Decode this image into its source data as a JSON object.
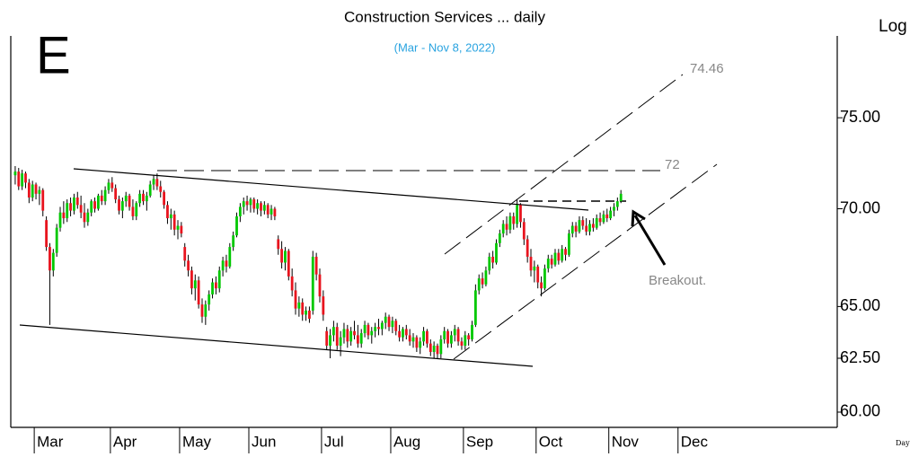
{
  "chart_data": {
    "type": "candlestick",
    "title": "Construction Services ... daily",
    "subtitle": "(Mar - Nov 8, 2022)",
    "panel_letter": "E",
    "scale_label": "Log",
    "footer_label": "Day",
    "annotations": [
      "74.46",
      "72",
      "Breakout."
    ],
    "log_scale": true,
    "up_color": "#00c800",
    "down_color": "#e8141e",
    "ylim": [
      59.35,
      79.8
    ],
    "yticks": [
      {
        "value": 60,
        "label": "60.00"
      },
      {
        "value": 62.5,
        "label": "62.50"
      },
      {
        "value": 65,
        "label": "65.00"
      },
      {
        "value": 70,
        "label": "70.00"
      },
      {
        "value": 75,
        "label": "75.00"
      }
    ],
    "categories": [
      null,
      null,
      null,
      null,
      null,
      null,
      "Mar",
      null,
      null,
      null,
      null,
      null,
      null,
      null,
      null,
      null,
      null,
      null,
      null,
      null,
      null,
      null,
      null,
      null,
      null,
      null,
      null,
      null,
      "Apr",
      null,
      null,
      null,
      null,
      null,
      null,
      null,
      null,
      null,
      null,
      null,
      null,
      null,
      null,
      null,
      null,
      null,
      null,
      null,
      "May",
      null,
      null,
      null,
      null,
      null,
      null,
      null,
      null,
      null,
      null,
      null,
      null,
      null,
      null,
      null,
      null,
      null,
      null,
      null,
      "Jun",
      null,
      null,
      null,
      null,
      null,
      null,
      null,
      null,
      null,
      null,
      null,
      null,
      null,
      null,
      null,
      null,
      null,
      null,
      null,
      null,
      "Jul",
      null,
      null,
      null,
      null,
      null,
      null,
      null,
      null,
      null,
      null,
      null,
      null,
      null,
      null,
      null,
      null,
      null,
      null,
      null,
      "Aug",
      null,
      null,
      null,
      null,
      null,
      null,
      null,
      null,
      null,
      null,
      null,
      null,
      null,
      null,
      null,
      null,
      null,
      null,
      null,
      null,
      "Sep",
      null,
      null,
      null,
      null,
      null,
      null,
      null,
      null,
      null,
      null,
      null,
      null,
      null,
      null,
      null,
      null,
      null,
      null,
      null,
      null,
      "Oct",
      null,
      null,
      null,
      null,
      null,
      null,
      null,
      null,
      null,
      null,
      null,
      null,
      null,
      null,
      null,
      null,
      null,
      null,
      null,
      null,
      "Nov",
      null,
      null,
      null,
      null,
      null,
      null,
      null,
      null,
      null,
      null,
      null,
      null,
      null,
      null,
      null,
      null,
      null,
      null,
      null,
      "Dec",
      null,
      null,
      null,
      null,
      null,
      null,
      null,
      null,
      null,
      null,
      null,
      null,
      null,
      null,
      null,
      null,
      null,
      null,
      null,
      null,
      null,
      null,
      null,
      null,
      null,
      null,
      null,
      null,
      null,
      null,
      null,
      null,
      null,
      null,
      null,
      null,
      null,
      null,
      null,
      null,
      null,
      null,
      null,
      null,
      null
    ],
    "candles": [
      [
        71.8,
        72.3,
        71.3,
        72.0
      ],
      [
        72.0,
        72.2,
        71.0,
        71.2
      ],
      [
        71.2,
        72.1,
        71.0,
        71.9
      ],
      [
        71.9,
        72.0,
        71.1,
        71.4
      ],
      [
        71.4,
        71.6,
        70.3,
        70.6
      ],
      [
        70.6,
        71.5,
        70.4,
        71.3
      ],
      [
        71.3,
        71.4,
        70.5,
        70.8
      ],
      [
        70.8,
        71.2,
        70.2,
        71.0
      ],
      [
        71.0,
        71.1,
        69.6,
        69.9
      ],
      [
        69.4,
        69.6,
        67.8,
        68.0
      ],
      [
        68.0,
        68.2,
        64.1,
        66.8
      ],
      [
        66.8,
        67.9,
        66.5,
        67.7
      ],
      [
        67.7,
        69.2,
        67.5,
        69.0
      ],
      [
        69.0,
        70.1,
        68.8,
        69.8
      ],
      [
        69.8,
        70.4,
        69.2,
        69.5
      ],
      [
        69.5,
        70.5,
        69.3,
        70.3
      ],
      [
        70.3,
        70.6,
        69.6,
        69.9
      ],
      [
        69.9,
        70.8,
        69.7,
        70.6
      ],
      [
        70.6,
        70.9,
        70.0,
        70.2
      ],
      [
        70.2,
        70.7,
        69.5,
        69.8
      ],
      [
        69.8,
        70.3,
        69.0,
        69.3
      ],
      [
        69.3,
        70.0,
        69.1,
        69.8
      ],
      [
        69.8,
        70.5,
        69.6,
        70.4
      ],
      [
        70.4,
        70.6,
        69.8,
        70.0
      ],
      [
        70.0,
        70.8,
        69.9,
        70.7
      ],
      [
        70.7,
        71.0,
        70.2,
        70.4
      ],
      [
        70.4,
        71.2,
        70.2,
        71.0
      ],
      [
        71.0,
        71.6,
        70.8,
        71.4
      ],
      [
        71.4,
        71.7,
        70.9,
        71.1
      ],
      [
        71.1,
        71.3,
        70.3,
        70.5
      ],
      [
        70.5,
        70.7,
        69.7,
        69.9
      ],
      [
        69.9,
        70.6,
        69.5,
        70.4
      ],
      [
        70.4,
        70.9,
        70.1,
        70.7
      ],
      [
        70.7,
        70.8,
        69.9,
        70.1
      ],
      [
        70.1,
        70.5,
        69.4,
        69.6
      ],
      [
        69.6,
        70.4,
        69.4,
        70.3
      ],
      [
        70.3,
        71.0,
        70.1,
        70.8
      ],
      [
        70.8,
        71.0,
        70.2,
        70.4
      ],
      [
        70.4,
        70.9,
        69.9,
        70.7
      ],
      [
        70.7,
        71.5,
        70.6,
        71.3
      ],
      [
        71.3,
        71.8,
        71.0,
        71.6
      ],
      [
        71.6,
        71.9,
        71.0,
        71.2
      ],
      [
        71.2,
        71.5,
        70.6,
        70.9
      ],
      [
        70.9,
        71.0,
        70.0,
        70.2
      ],
      [
        70.2,
        70.4,
        69.2,
        69.5
      ],
      [
        69.5,
        70.0,
        68.9,
        69.7
      ],
      [
        69.7,
        69.9,
        68.6,
        68.9
      ],
      [
        68.9,
        69.4,
        68.4,
        69.1
      ],
      [
        69.1,
        69.3,
        68.5,
        68.7
      ],
      [
        68.0,
        68.2,
        67.0,
        67.3
      ],
      [
        67.3,
        67.6,
        66.5,
        66.8
      ],
      [
        66.8,
        67.0,
        65.6,
        65.9
      ],
      [
        65.9,
        66.6,
        65.3,
        66.3
      ],
      [
        66.3,
        66.5,
        64.9,
        65.1
      ],
      [
        65.1,
        65.4,
        64.2,
        64.5
      ],
      [
        64.5,
        65.3,
        64.1,
        65.1
      ],
      [
        65.1,
        65.8,
        64.8,
        65.6
      ],
      [
        65.6,
        66.4,
        65.4,
        66.2
      ],
      [
        66.2,
        66.5,
        65.6,
        65.9
      ],
      [
        65.9,
        67.0,
        65.7,
        66.8
      ],
      [
        66.8,
        67.5,
        66.5,
        67.3
      ],
      [
        67.3,
        67.6,
        66.7,
        67.0
      ],
      [
        67.0,
        68.2,
        66.9,
        68.0
      ],
      [
        68.0,
        68.8,
        67.8,
        68.6
      ],
      [
        68.6,
        69.8,
        68.5,
        69.6
      ],
      [
        69.6,
        70.3,
        69.3,
        70.1
      ],
      [
        70.1,
        70.6,
        69.7,
        70.4
      ],
      [
        70.4,
        70.7,
        69.9,
        70.2
      ],
      [
        70.2,
        70.6,
        69.8,
        70.5
      ],
      [
        70.5,
        70.6,
        69.8,
        70.0
      ],
      [
        70.0,
        70.5,
        69.7,
        70.3
      ],
      [
        70.3,
        70.4,
        69.6,
        69.9
      ],
      [
        69.9,
        70.4,
        69.7,
        70.2
      ],
      [
        70.2,
        70.3,
        69.5,
        69.7
      ],
      [
        69.7,
        70.2,
        69.4,
        70.0
      ],
      [
        70.0,
        70.1,
        69.4,
        69.6
      ],
      [
        68.4,
        68.6,
        67.6,
        67.9
      ],
      [
        67.9,
        68.3,
        66.9,
        67.2
      ],
      [
        67.2,
        68.0,
        66.8,
        67.8
      ],
      [
        67.8,
        67.9,
        66.3,
        66.5
      ],
      [
        66.5,
        66.9,
        65.5,
        65.8
      ],
      [
        65.8,
        66.2,
        64.6,
        64.9
      ],
      [
        64.9,
        65.5,
        64.5,
        65.2
      ],
      [
        65.2,
        65.4,
        64.3,
        64.6
      ],
      [
        64.6,
        65.0,
        64.3,
        64.8
      ],
      [
        64.8,
        65.0,
        64.2,
        64.4
      ],
      [
        64.8,
        67.8,
        64.6,
        67.5
      ],
      [
        67.5,
        67.7,
        66.3,
        66.6
      ],
      [
        66.6,
        66.9,
        65.2,
        65.5
      ],
      [
        65.5,
        65.8,
        64.3,
        64.6
      ],
      [
        63.8,
        64.0,
        62.9,
        63.1
      ],
      [
        63.1,
        63.9,
        62.5,
        63.6
      ],
      [
        63.6,
        64.3,
        63.3,
        64.0
      ],
      [
        64.0,
        64.2,
        62.9,
        63.1
      ],
      [
        63.1,
        63.8,
        62.6,
        63.5
      ],
      [
        63.5,
        64.2,
        63.2,
        63.9
      ],
      [
        63.9,
        64.1,
        63.0,
        63.3
      ],
      [
        63.3,
        64.0,
        63.1,
        63.8
      ],
      [
        63.8,
        64.3,
        63.4,
        63.6
      ],
      [
        63.6,
        64.1,
        63.0,
        63.2
      ],
      [
        63.2,
        63.9,
        63.0,
        63.7
      ],
      [
        63.7,
        64.3,
        63.5,
        64.1
      ],
      [
        64.1,
        64.2,
        63.4,
        63.6
      ],
      [
        63.6,
        64.0,
        63.2,
        63.8
      ],
      [
        63.8,
        64.2,
        63.5,
        64.0
      ],
      [
        64.0,
        64.4,
        63.6,
        63.9
      ],
      [
        63.9,
        64.3,
        63.6,
        64.2
      ],
      [
        64.2,
        64.7,
        63.9,
        64.5
      ],
      [
        64.5,
        64.6,
        63.8,
        64.0
      ],
      [
        64.0,
        64.5,
        63.7,
        64.3
      ],
      [
        64.3,
        64.4,
        63.6,
        63.8
      ],
      [
        63.8,
        64.1,
        63.3,
        63.5
      ],
      [
        63.5,
        64.0,
        63.3,
        63.9
      ],
      [
        63.9,
        64.1,
        63.4,
        63.6
      ],
      [
        63.6,
        63.9,
        63.1,
        63.3
      ],
      [
        63.3,
        63.7,
        63.0,
        63.5
      ],
      [
        63.5,
        63.6,
        62.8,
        63.0
      ],
      [
        63.0,
        63.5,
        62.7,
        63.3
      ],
      [
        63.3,
        64.0,
        63.1,
        63.8
      ],
      [
        63.8,
        63.9,
        63.0,
        63.2
      ],
      [
        63.2,
        63.4,
        62.6,
        62.8
      ],
      [
        62.8,
        63.3,
        62.5,
        63.1
      ],
      [
        63.1,
        63.2,
        62.5,
        62.7
      ],
      [
        62.7,
        63.6,
        62.5,
        63.4
      ],
      [
        63.4,
        64.0,
        63.2,
        63.8
      ],
      [
        63.8,
        63.9,
        63.0,
        63.2
      ],
      [
        63.2,
        63.8,
        63.0,
        63.6
      ],
      [
        63.6,
        64.1,
        63.3,
        63.9
      ],
      [
        63.9,
        64.0,
        63.1,
        63.3
      ],
      [
        63.3,
        63.5,
        62.9,
        63.1
      ],
      [
        63.1,
        63.8,
        62.9,
        63.6
      ],
      [
        63.6,
        63.7,
        63.1,
        63.4
      ],
      [
        63.4,
        64.3,
        63.3,
        64.1
      ],
      [
        64.1,
        66.1,
        64.0,
        65.8
      ],
      [
        65.8,
        66.6,
        65.6,
        66.4
      ],
      [
        66.4,
        66.7,
        65.9,
        66.1
      ],
      [
        66.1,
        67.0,
        66.0,
        66.8
      ],
      [
        66.8,
        67.7,
        66.6,
        67.5
      ],
      [
        67.5,
        67.8,
        66.9,
        67.2
      ],
      [
        67.2,
        68.4,
        67.1,
        68.2
      ],
      [
        68.2,
        68.9,
        68.0,
        68.7
      ],
      [
        68.7,
        69.4,
        68.5,
        69.2
      ],
      [
        69.2,
        69.6,
        68.6,
        68.9
      ],
      [
        68.9,
        69.8,
        68.7,
        69.6
      ],
      [
        69.6,
        69.8,
        68.9,
        69.2
      ],
      [
        69.2,
        70.5,
        69.0,
        70.2
      ],
      [
        70.2,
        70.3,
        69.0,
        69.3
      ],
      [
        69.3,
        69.5,
        68.1,
        68.4
      ],
      [
        68.4,
        68.6,
        67.2,
        67.5
      ],
      [
        67.5,
        67.9,
        66.5,
        66.8
      ],
      [
        66.8,
        67.3,
        66.2,
        67.0
      ],
      [
        67.0,
        67.1,
        65.9,
        66.2
      ],
      [
        66.2,
        66.5,
        65.5,
        65.9
      ],
      [
        65.9,
        67.1,
        65.8,
        66.9
      ],
      [
        66.9,
        67.6,
        66.7,
        67.4
      ],
      [
        67.4,
        67.6,
        66.9,
        67.1
      ],
      [
        67.1,
        67.9,
        67.0,
        67.7
      ],
      [
        67.7,
        67.9,
        67.1,
        67.3
      ],
      [
        67.3,
        68.1,
        67.2,
        67.9
      ],
      [
        67.9,
        68.0,
        67.3,
        67.6
      ],
      [
        67.6,
        68.9,
        67.5,
        68.7
      ],
      [
        68.7,
        69.3,
        68.5,
        69.1
      ],
      [
        69.1,
        69.3,
        68.5,
        68.8
      ],
      [
        68.8,
        69.6,
        68.7,
        69.4
      ],
      [
        69.4,
        69.6,
        68.9,
        69.1
      ],
      [
        69.1,
        69.5,
        68.6,
        68.8
      ],
      [
        68.8,
        69.4,
        68.6,
        69.2
      ],
      [
        69.2,
        69.5,
        68.8,
        69.0
      ],
      [
        69.0,
        69.7,
        68.9,
        69.5
      ],
      [
        69.5,
        69.8,
        69.1,
        69.3
      ],
      [
        69.3,
        69.9,
        69.2,
        69.7
      ],
      [
        69.7,
        70.0,
        69.3,
        69.5
      ],
      [
        69.5,
        70.1,
        69.4,
        69.9
      ],
      [
        69.9,
        70.3,
        69.6,
        70.1
      ],
      [
        70.1,
        70.6,
        69.9,
        70.4
      ],
      [
        70.4,
        71.0,
        70.3,
        70.8
      ],
      null,
      null,
      null,
      null,
      null,
      null,
      null,
      null,
      null,
      null,
      null,
      null,
      null,
      null,
      null,
      null,
      null,
      null,
      null,
      null,
      null,
      null,
      null,
      null,
      null,
      null,
      null,
      null,
      null,
      null,
      null,
      null,
      null,
      null,
      null,
      null,
      null,
      null,
      null,
      null,
      null,
      null,
      null,
      null,
      null,
      null,
      null,
      null,
      null,
      null,
      null,
      null,
      null,
      null,
      null,
      null,
      null,
      null,
      null,
      null,
      null,
      null
    ]
  }
}
